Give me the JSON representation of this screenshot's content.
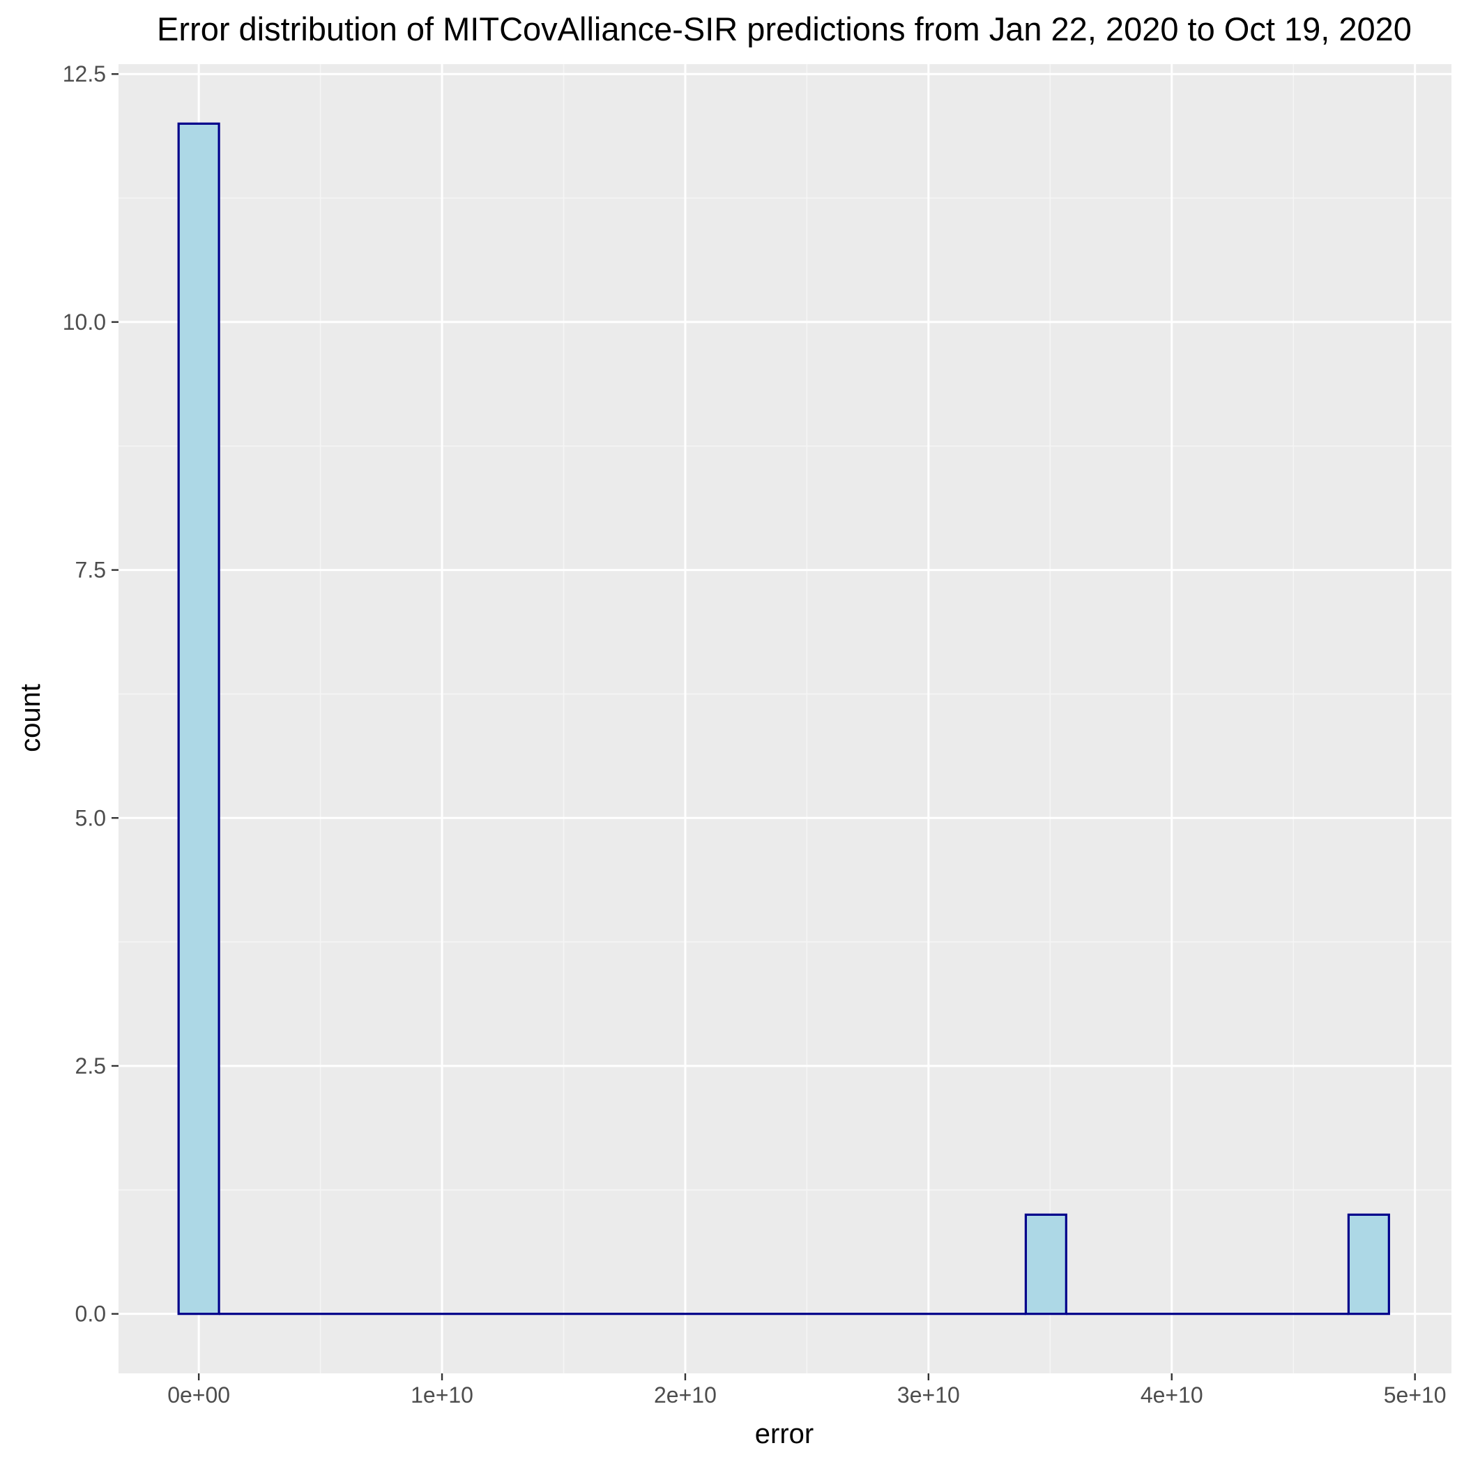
{
  "chart_data": {
    "type": "bar",
    "title": "Error distribution of MITCovAlliance-SIR predictions from Jan 22, 2020 to Oct 19, 2020",
    "xlabel": "error",
    "ylabel": "count",
    "xlim": [
      -3300000000.0,
      51500000000.0
    ],
    "ylim": [
      -0.6,
      12.6
    ],
    "x_ticks": [
      0,
      10000000000.0,
      20000000000.0,
      30000000000.0,
      40000000000.0,
      50000000000.0
    ],
    "x_tick_labels": [
      "0e+00",
      "1e+10",
      "2e+10",
      "3e+10",
      "4e+10",
      "5e+10"
    ],
    "y_ticks": [
      0,
      2.5,
      5,
      7.5,
      10,
      12.5
    ],
    "y_tick_labels": [
      "0.0",
      "2.5",
      "5.0",
      "7.5",
      "10.0",
      "12.5"
    ],
    "grid": true,
    "legend": "none",
    "bin_width": 1660000000.0,
    "bins": [
      {
        "x_start": -830000000.0,
        "x_end": 830000000.0,
        "count": 12
      },
      {
        "x_start": 830000000.0,
        "x_end": 34000000000.0,
        "count": 0
      },
      {
        "x_start": 34000000000.0,
        "x_end": 35660000000.0,
        "count": 1
      },
      {
        "x_start": 35660000000.0,
        "x_end": 47270000000.0,
        "count": 0
      },
      {
        "x_start": 47270000000.0,
        "x_end": 48930000000.0,
        "count": 1
      }
    ],
    "colors": {
      "panel_background": "#ebebeb",
      "grid_major": "#ffffff",
      "grid_minor": "#f5f5f5",
      "bar_fill": "#add8e6",
      "bar_outline": "#00008b",
      "tick_text": "#4d4d4d",
      "axis_text": "#000000"
    }
  }
}
